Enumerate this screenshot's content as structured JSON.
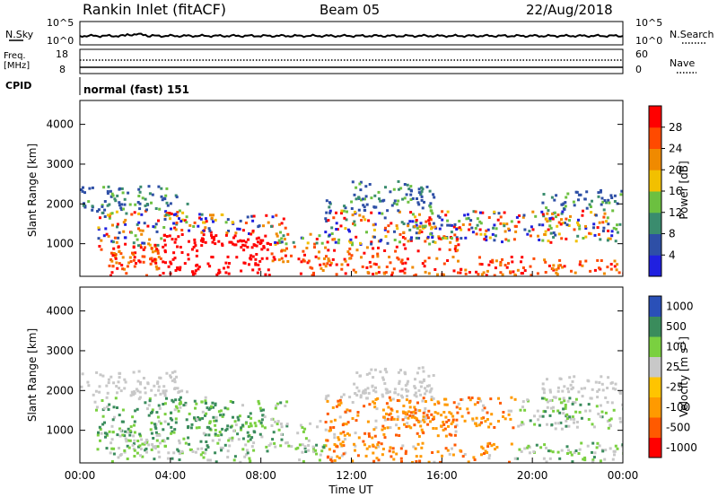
{
  "header": {
    "station": "Rankin Inlet (fitACF)",
    "beam": "Beam 05",
    "date": "22/Aug/2018"
  },
  "noise_panel": {
    "left_label": "N.Sky",
    "right_label": "N.Search",
    "left_ticks": [
      "10^5",
      "10^0"
    ],
    "right_ticks": [
      "10^5",
      "10^0"
    ]
  },
  "freq_panel": {
    "left_label_1": "Freq.",
    "left_label_2": "[MHz]",
    "right_label": "Nave",
    "left_ticks": [
      "18",
      "8"
    ],
    "right_ticks": [
      "60",
      "0"
    ]
  },
  "cpid": {
    "label": "CPID",
    "value": "normal (fast) 151"
  },
  "x_axis": {
    "label": "Time UT",
    "ticks": [
      "00:00",
      "04:00",
      "08:00",
      "12:00",
      "16:00",
      "20:00",
      "00:00"
    ]
  },
  "colors": {
    "power_scale": [
      "#2020e0",
      "#2e4fa6",
      "#3a8c6e",
      "#6cc040",
      "#f2c000",
      "#f08a00",
      "#ff4a00",
      "#ff0000"
    ],
    "velocity_scale": [
      "#ff0000",
      "#ff5a00",
      "#ff9a00",
      "#ffc400",
      "#c8c8c8",
      "#7ad040",
      "#3a8c5c",
      "#2a50b8"
    ]
  },
  "chart_data": [
    {
      "type": "heatmap",
      "title": "Power",
      "ylabel": "Slant Range [km]",
      "xlabel": "",
      "ylim": [
        180,
        4600
      ],
      "y_ticks": [
        "1000",
        "2000",
        "3000",
        "4000"
      ],
      "xlim": [
        "00:00",
        "24:00"
      ],
      "colorbar": {
        "label": "Power [dB]",
        "range": [
          0,
          32
        ],
        "ticks": [
          "4",
          "8",
          "12",
          "16",
          "20",
          "24",
          "28"
        ]
      }
    },
    {
      "type": "heatmap",
      "title": "Velocity",
      "ylabel": "Slant Range [km]",
      "xlabel": "Time UT",
      "ylim": [
        180,
        4600
      ],
      "y_ticks": [
        "1000",
        "2000",
        "3000",
        "4000"
      ],
      "xlim": [
        "00:00",
        "24:00"
      ],
      "colorbar": {
        "label": "Velocity [m s^-1]",
        "ticks": [
          "1000",
          "500",
          "100",
          "25",
          "-25",
          "-100",
          "-500",
          "-1000"
        ]
      }
    }
  ]
}
